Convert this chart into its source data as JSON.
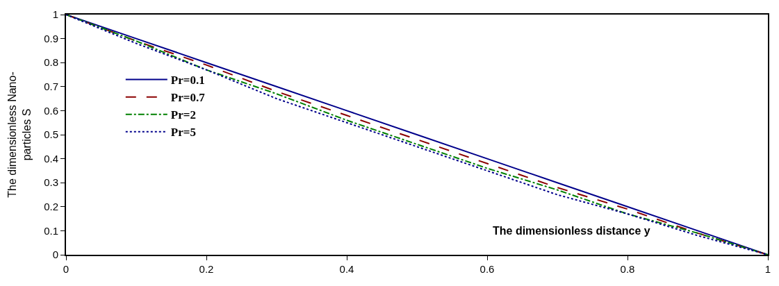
{
  "chart_data": {
    "type": "line",
    "xlabel": "The dimensionless distance y",
    "ylabel": "The dimensionless Nano-particles S",
    "x": [
      0,
      0.1,
      0.2,
      0.3,
      0.4,
      0.5,
      0.6,
      0.7,
      0.8,
      0.9,
      1
    ],
    "series": [
      {
        "name": "Pr=0.1",
        "color": "#00008b",
        "line_style": "solid",
        "values": [
          1,
          0.9,
          0.8,
          0.7,
          0.6,
          0.5,
          0.4,
          0.3,
          0.2,
          0.1,
          0
        ]
      },
      {
        "name": "Pr=0.7",
        "color": "#8b0000",
        "line_style": "dashed",
        "values": [
          1,
          0.89,
          0.79,
          0.68,
          0.58,
          0.48,
          0.38,
          0.28,
          0.19,
          0.09,
          0
        ]
      },
      {
        "name": "Pr=2",
        "color": "#008000",
        "line_style": "dashdot",
        "values": [
          1,
          0.89,
          0.77,
          0.67,
          0.56,
          0.46,
          0.36,
          0.27,
          0.17,
          0.09,
          0
        ]
      },
      {
        "name": "Pr=5",
        "color": "#00008b",
        "line_style": "dotted",
        "values": [
          1,
          0.88,
          0.77,
          0.65,
          0.55,
          0.45,
          0.35,
          0.25,
          0.17,
          0.08,
          0
        ]
      }
    ],
    "xlim": [
      0,
      1
    ],
    "xticks": [
      0,
      0.2,
      0.4,
      0.6,
      0.8,
      1
    ],
    "ylim": [
      0,
      1
    ],
    "yticks": [
      0,
      0.1,
      0.2,
      0.3,
      0.4,
      0.5,
      0.6,
      0.7,
      0.8,
      0.9,
      1
    ],
    "legend": "left",
    "marker": "none"
  }
}
